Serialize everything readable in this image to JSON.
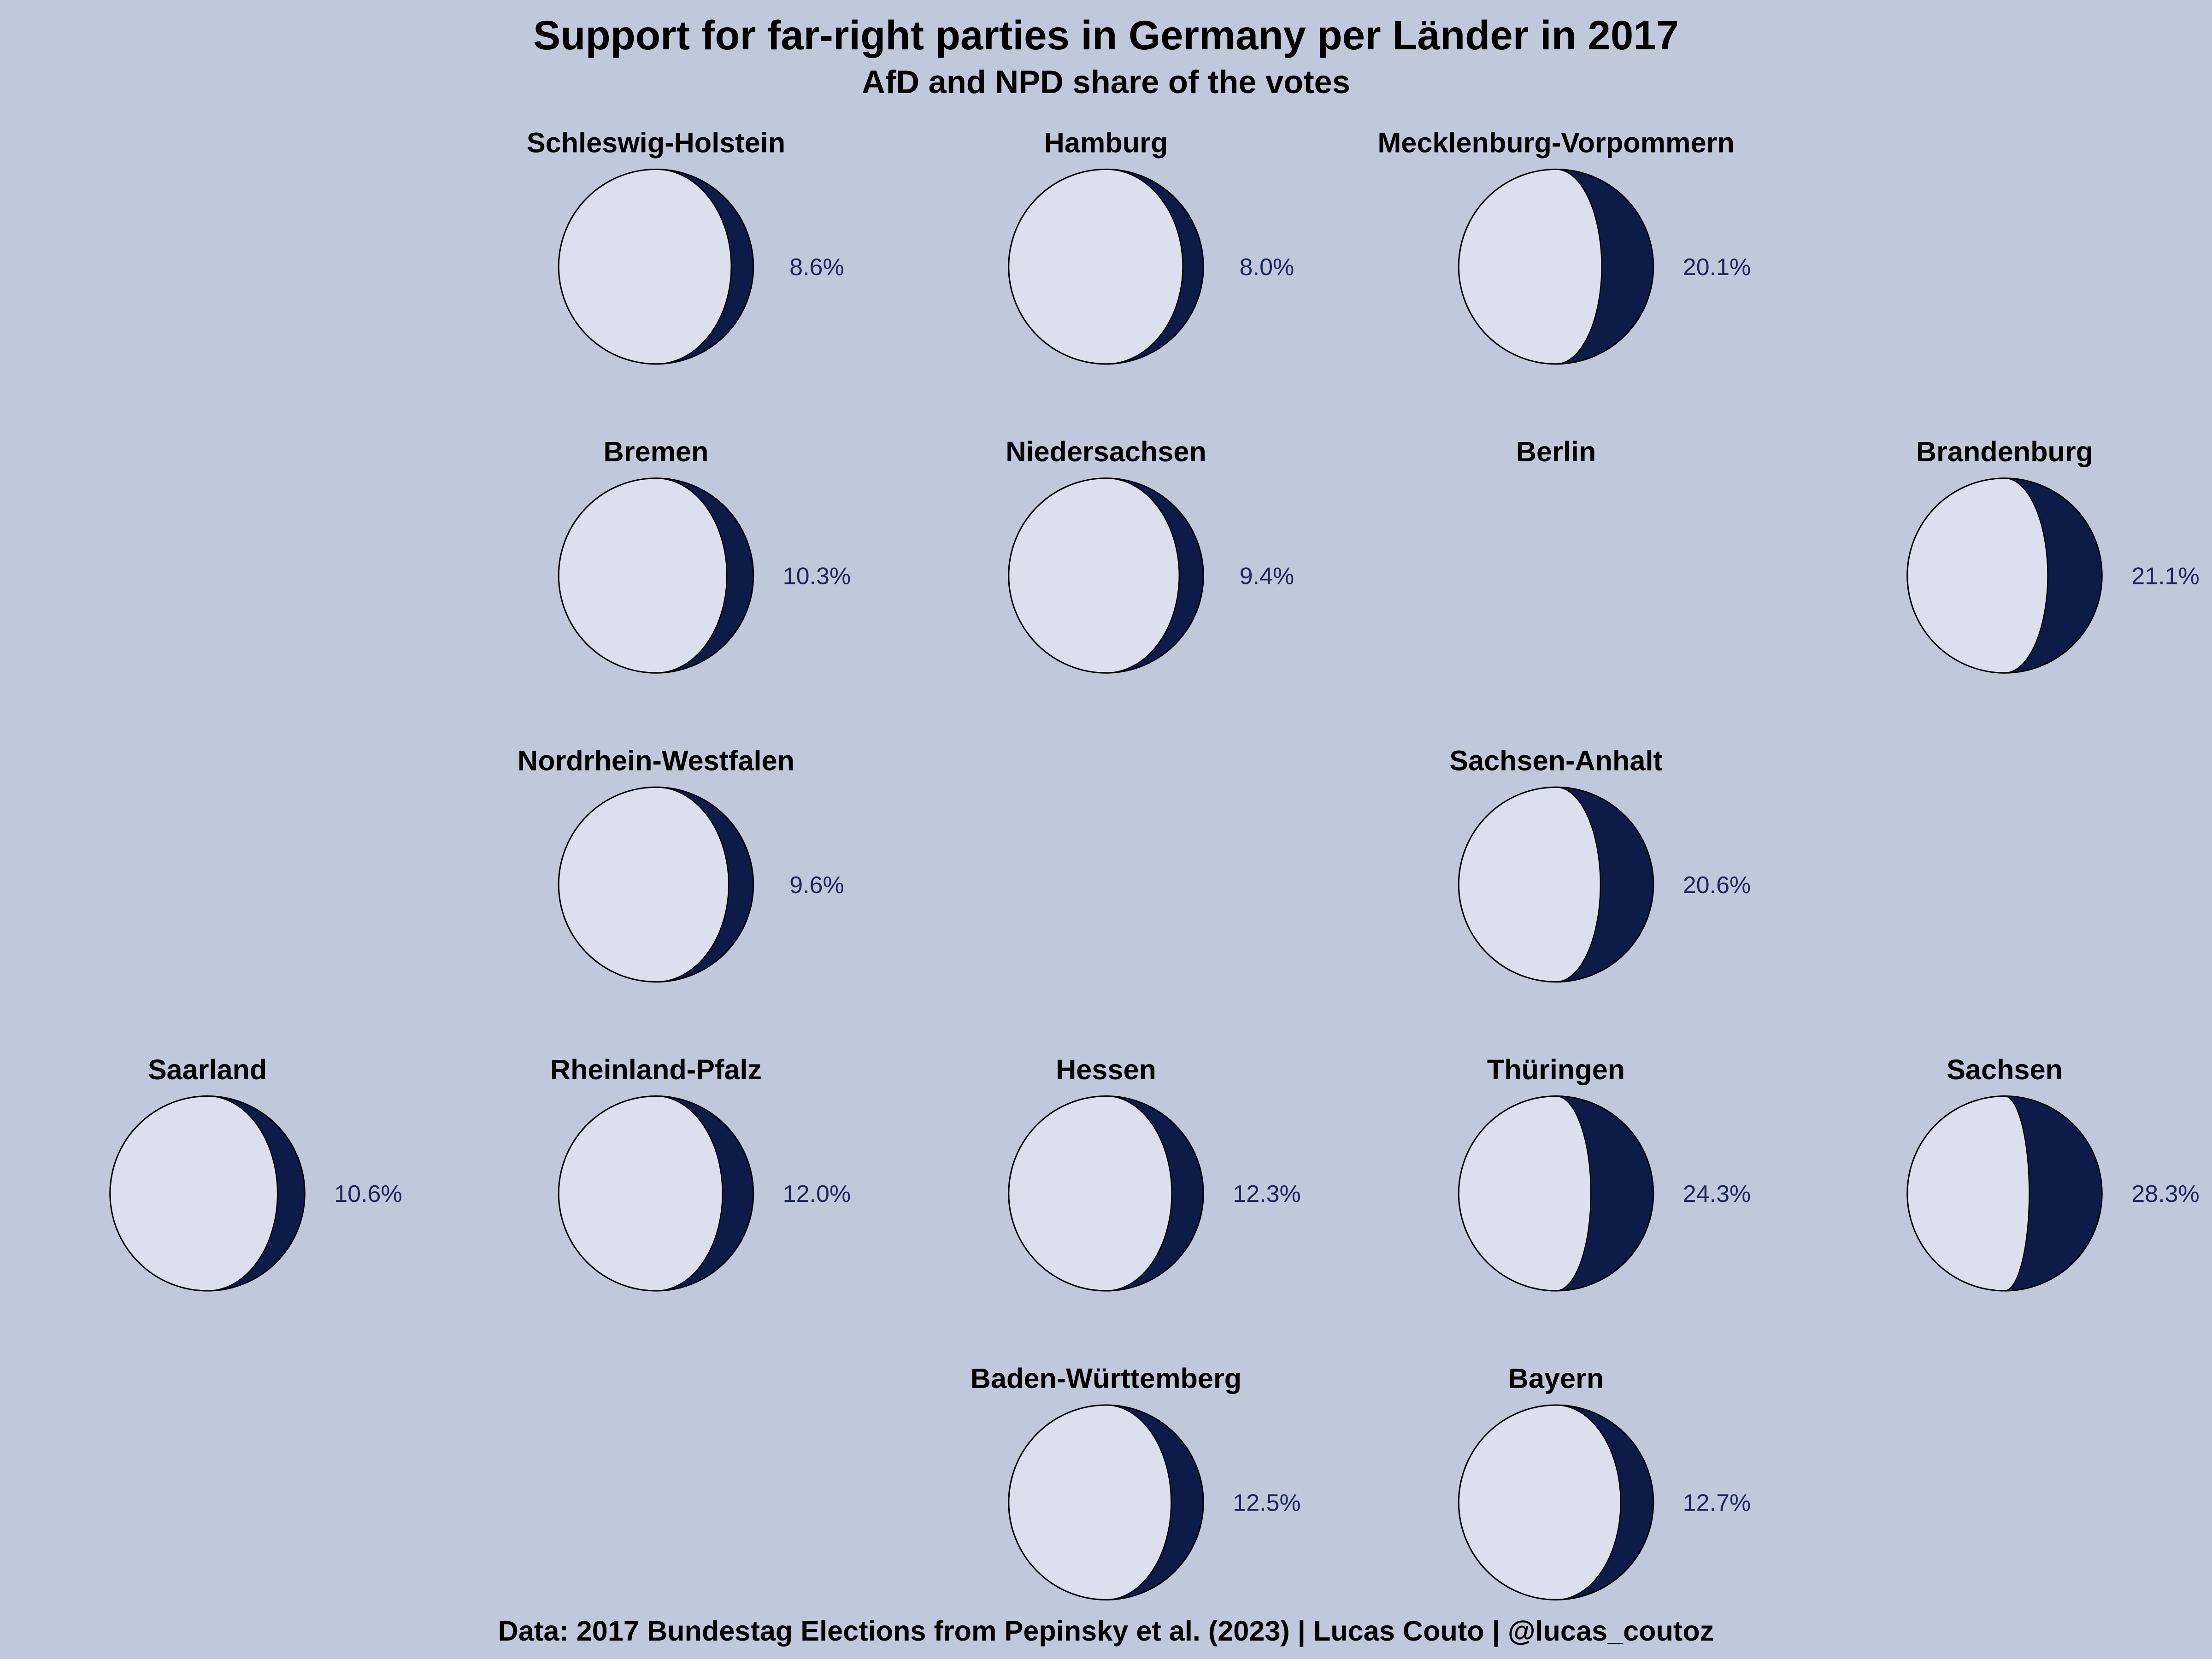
{
  "chart_data": {
    "type": "tile-map-moon",
    "title": "Support for far-right parties in Germany per Länder in 2017",
    "subtitle": "AfD and NPD share of the votes",
    "caption": "Data: 2017 Bundestag Elections from Pepinsky et al. (2023) | Lucas Couto | @lucas_coutoz",
    "unit": "%",
    "states": [
      {
        "name": "Schleswig-Holstein",
        "value": 8.6,
        "label": "8.6%"
      },
      {
        "name": "Hamburg",
        "value": 8.0,
        "label": "8.0%"
      },
      {
        "name": "Mecklenburg-Vorpommern",
        "value": 20.1,
        "label": "20.1%"
      },
      {
        "name": "Bremen",
        "value": 10.3,
        "label": "10.3%"
      },
      {
        "name": "Niedersachsen",
        "value": 9.4,
        "label": "9.4%"
      },
      {
        "name": "Berlin",
        "value": null,
        "label": null
      },
      {
        "name": "Brandenburg",
        "value": 21.1,
        "label": "21.1%"
      },
      {
        "name": "Nordrhein-Westfalen",
        "value": 9.6,
        "label": "9.6%"
      },
      {
        "name": "Sachsen-Anhalt",
        "value": 20.6,
        "label": "20.6%"
      },
      {
        "name": "Saarland",
        "value": 10.6,
        "label": "10.6%"
      },
      {
        "name": "Rheinland-Pfalz",
        "value": 12.0,
        "label": "12.0%"
      },
      {
        "name": "Hessen",
        "value": 12.3,
        "label": "12.3%"
      },
      {
        "name": "Thüringen",
        "value": 24.3,
        "label": "24.3%"
      },
      {
        "name": "Sachsen",
        "value": 28.3,
        "label": "28.3%"
      },
      {
        "name": "Baden-Württemberg",
        "value": 12.5,
        "label": "12.5%"
      },
      {
        "name": "Bayern",
        "value": 12.7,
        "label": "12.7%"
      }
    ],
    "colors": {
      "background": "#c0c8db",
      "lit": "#dae0ee",
      "shadow": "#0d1b48",
      "label": "#1a2658"
    }
  }
}
